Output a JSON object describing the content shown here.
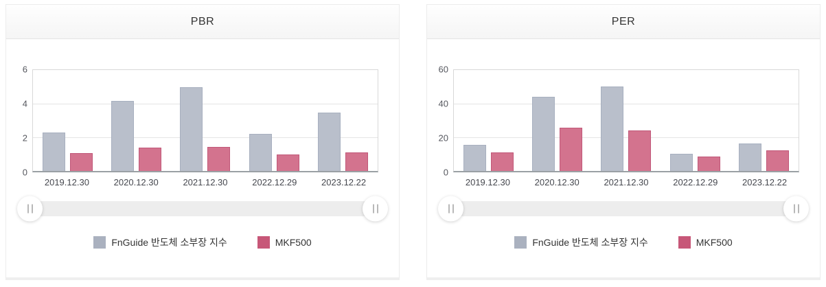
{
  "chart_data": [
    {
      "type": "bar",
      "title": "PBR",
      "categories": [
        "2019.12.30",
        "2020.12.30",
        "2021.12.30",
        "2022.12.29",
        "2023.12.22"
      ],
      "series": [
        {
          "name": "FnGuide 반도체 소부장 지수",
          "values": [
            2.3,
            4.17,
            4.97,
            2.21,
            3.45
          ],
          "color": "#b9bfcb",
          "border_color": "#a7afbf"
        },
        {
          "name": "MKF500",
          "values": [
            1.05,
            1.39,
            1.44,
            0.96,
            1.09
          ],
          "color": "#d3738e",
          "border_color": "#c05778"
        }
      ],
      "ylim": [
        0,
        6
      ],
      "y_ticks": [
        6,
        4,
        2,
        0
      ],
      "grid": true,
      "legend_position": "bottom"
    },
    {
      "type": "bar",
      "title": "PER",
      "categories": [
        "2019.12.30",
        "2020.12.30",
        "2021.12.30",
        "2022.12.29",
        "2023.12.22"
      ],
      "series": [
        {
          "name": "FnGuide 반도체 소부장 지수",
          "values": [
            15.4,
            44.2,
            50.3,
            10.1,
            16.5
          ],
          "color": "#b9bfcb",
          "border_color": "#a7afbf"
        },
        {
          "name": "MKF500",
          "values": [
            11.0,
            25.6,
            24.1,
            8.4,
            12.4
          ],
          "color": "#d3738e",
          "border_color": "#c05778"
        }
      ],
      "ylim": [
        0,
        60
      ],
      "y_ticks": [
        60,
        40,
        20,
        0
      ],
      "grid": true,
      "legend_position": "bottom"
    }
  ],
  "legend": {
    "items": [
      {
        "label": "FnGuide 반도체 소부장 지수",
        "color": "#aab1bf"
      },
      {
        "label": "MKF500",
        "color": "#c75778"
      }
    ]
  },
  "colors": {
    "series_gray": "#b9bfcb",
    "series_pink": "#d3738e",
    "axis_line": "#9aa0a4",
    "gridline": "#e4e4e4",
    "slider_track": "#ededed"
  }
}
